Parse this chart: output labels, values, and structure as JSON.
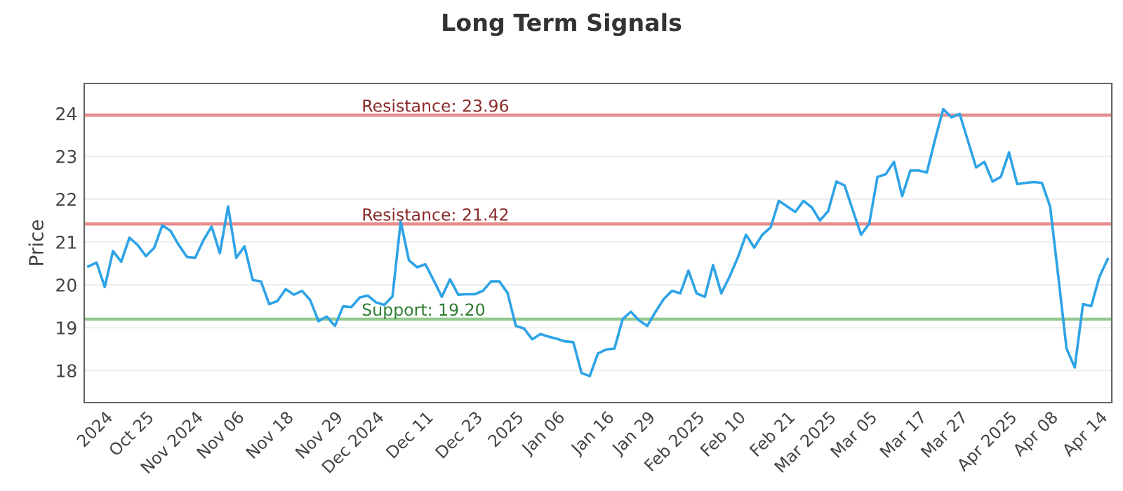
{
  "chart_data": {
    "type": "line",
    "title": "Long Term Signals",
    "ylabel": "Price",
    "categories": [
      null,
      null,
      "2024",
      null,
      null,
      null,
      null,
      "Oct 25",
      null,
      null,
      null,
      null,
      null,
      "Nov 2024",
      null,
      null,
      null,
      null,
      "Nov 06",
      null,
      null,
      null,
      null,
      null,
      "Nov 18",
      null,
      null,
      null,
      null,
      null,
      "Nov 29",
      null,
      null,
      null,
      null,
      "Dec 2024",
      null,
      null,
      null,
      null,
      null,
      "Dec 11",
      null,
      null,
      null,
      null,
      null,
      "Dec 23",
      null,
      null,
      null,
      null,
      "2025",
      null,
      null,
      null,
      null,
      "Jan 06",
      null,
      null,
      null,
      null,
      null,
      "Jan 16",
      null,
      null,
      null,
      null,
      "Jan 29",
      null,
      null,
      null,
      null,
      null,
      "Feb 2025",
      null,
      null,
      null,
      null,
      "Feb 10",
      null,
      null,
      null,
      null,
      null,
      "Feb 21",
      null,
      null,
      null,
      null,
      "Mar 2025",
      null,
      null,
      null,
      null,
      "Mar 05",
      null,
      null,
      null,
      null,
      null,
      "Mar 17",
      null,
      null,
      null,
      null,
      "Mar 27",
      null,
      null,
      null,
      null,
      null,
      "Apr 2025",
      null,
      null,
      null,
      null,
      "Apr 08",
      null,
      null,
      null,
      null,
      null,
      "Apr 14",
      null
    ],
    "series": [
      {
        "color": "#2ea3e6",
        "values": [
          20.43,
          20.52,
          19.95,
          20.79,
          20.54,
          21.1,
          20.93,
          20.67,
          20.86,
          21.39,
          21.26,
          20.93,
          20.65,
          20.63,
          21.04,
          21.36,
          20.74,
          21.83,
          20.63,
          20.9,
          20.11,
          20.08,
          19.55,
          19.62,
          19.9,
          19.77,
          19.86,
          19.64,
          19.15,
          19.26,
          19.04,
          19.5,
          19.48,
          19.7,
          19.75,
          19.59,
          19.53,
          19.73,
          21.48,
          20.57,
          20.41,
          20.48,
          20.11,
          19.72,
          20.13,
          19.77,
          19.78,
          19.78,
          19.86,
          20.08,
          20.08,
          19.81,
          19.04,
          18.98,
          18.73,
          18.85,
          18.79,
          18.74,
          18.68,
          18.66,
          17.94,
          17.87,
          18.4,
          18.49,
          18.51,
          19.2,
          19.37,
          19.17,
          19.04,
          19.37,
          19.67,
          19.86,
          19.8,
          20.33,
          19.8,
          19.72,
          20.46,
          19.8,
          20.19,
          20.63,
          21.17,
          20.87,
          21.17,
          21.34,
          21.96,
          21.83,
          21.7,
          21.96,
          21.81,
          21.5,
          21.72,
          22.41,
          22.32,
          21.74,
          21.17,
          21.43,
          22.52,
          22.58,
          22.87,
          22.07,
          22.67,
          22.67,
          22.62,
          23.39,
          24.1,
          23.91,
          23.99,
          23.36,
          22.74,
          22.87,
          22.41,
          22.52,
          23.09,
          22.35,
          22.38,
          22.4,
          22.38,
          21.83,
          20.19,
          18.51,
          18.07,
          19.55,
          19.5,
          20.19,
          20.6
        ]
      }
    ],
    "ylim": [
      17.25,
      24.7
    ],
    "yticks": [
      18,
      19,
      20,
      21,
      22,
      23,
      24
    ],
    "grid": "y",
    "ref_lines": [
      {
        "axis": "y",
        "value": 23.96,
        "label": "Resistance: 23.96",
        "color": "#e88c8c"
      },
      {
        "axis": "y",
        "value": 21.42,
        "label": "Resistance: 21.42",
        "color": "#e88c8c"
      },
      {
        "axis": "y",
        "value": 19.2,
        "label": "Support: 19.20",
        "color": "#93c98f"
      }
    ]
  }
}
